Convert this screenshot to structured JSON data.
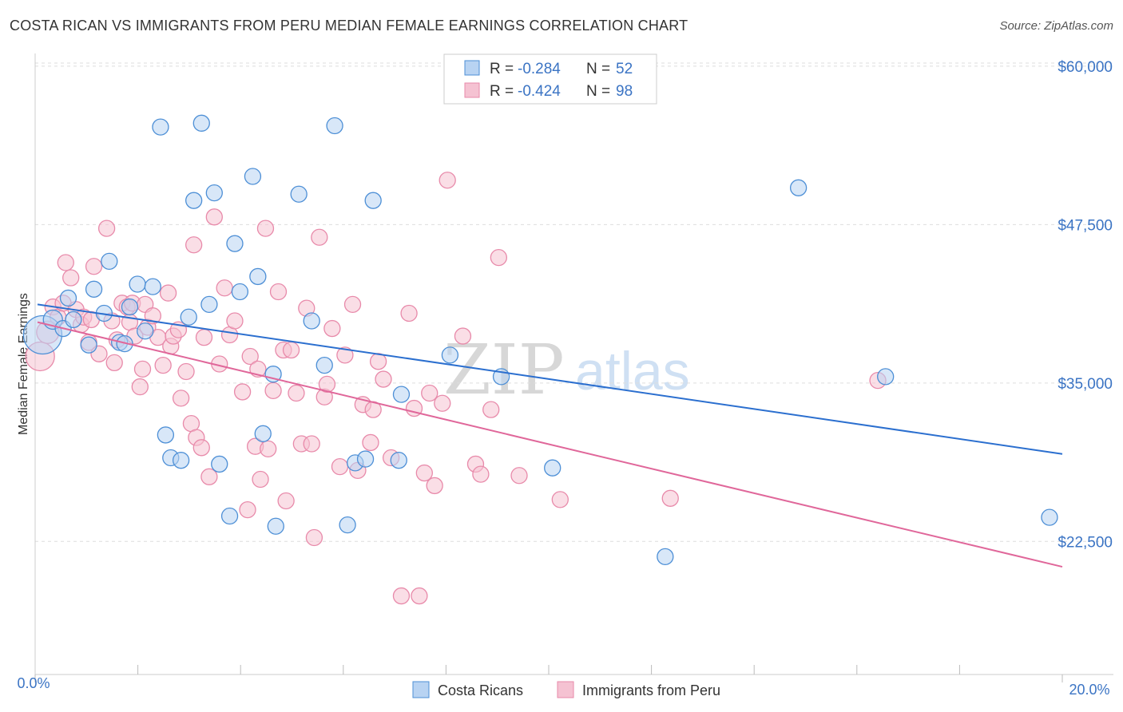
{
  "header": {
    "title": "COSTA RICAN VS IMMIGRANTS FROM PERU MEDIAN FEMALE EARNINGS CORRELATION CHART",
    "source": "Source: ZipAtlas.com"
  },
  "colors": {
    "blue": "#4d8fd6",
    "blue_fill": "#b8d3f2",
    "blue_line": "#2b6fcf",
    "pink": "#e88aaa",
    "pink_fill": "#f5c2d2",
    "pink_line": "#e0679a",
    "axis_label": "#3b74c4",
    "grid": "#dddddd"
  },
  "watermark": {
    "part1": "ZIP",
    "part2": "atlas"
  },
  "legend_top": {
    "rows": [
      {
        "r_label": "R =",
        "r_value": "-0.284",
        "n_label": "N =",
        "n_value": "52"
      },
      {
        "r_label": "R =",
        "r_value": "-0.424",
        "n_label": "N =",
        "n_value": "98"
      }
    ]
  },
  "legend_bottom": {
    "items": [
      "Costa Ricans",
      "Immigrants from Peru"
    ]
  },
  "chart_data": {
    "type": "scatter",
    "title": "COSTA RICAN VS IMMIGRANTS FROM PERU MEDIAN FEMALE EARNINGS CORRELATION CHART",
    "xlabel": "",
    "ylabel": "Median Female Earnings",
    "xlim": [
      0,
      20
    ],
    "ylim": [
      12000,
      61000
    ],
    "x_tick_labels": {
      "left": "0.0%",
      "right": "20.0%"
    },
    "y_ticks": [
      {
        "value": 60000,
        "label": "$60,000"
      },
      {
        "value": 47500,
        "label": "$47,500"
      },
      {
        "value": 35000,
        "label": "$35,000"
      },
      {
        "value": 22500,
        "label": "$22,500"
      }
    ],
    "grid": true,
    "series": [
      {
        "name": "Costa Ricans",
        "r": -0.284,
        "n": 52,
        "trend": {
          "x": [
            0.0,
            20.0
          ],
          "y": [
            41200,
            29400
          ]
        },
        "points": [
          [
            0.1,
            38800,
            24
          ],
          [
            0.3,
            40000,
            12
          ],
          [
            0.5,
            39300,
            10
          ],
          [
            0.6,
            41700,
            10
          ],
          [
            0.7,
            40000,
            10
          ],
          [
            1.0,
            38000,
            10
          ],
          [
            1.1,
            42400,
            10
          ],
          [
            1.3,
            40500,
            10
          ],
          [
            1.4,
            44600,
            10
          ],
          [
            1.6,
            38200,
            10
          ],
          [
            1.7,
            38100,
            10
          ],
          [
            1.8,
            41000,
            10
          ],
          [
            1.95,
            42800,
            10
          ],
          [
            2.1,
            39100,
            10
          ],
          [
            2.25,
            42600,
            10
          ],
          [
            2.4,
            55200,
            10
          ],
          [
            2.5,
            30900,
            10
          ],
          [
            2.6,
            29100,
            10
          ],
          [
            2.8,
            28900,
            10
          ],
          [
            2.95,
            40200,
            10
          ],
          [
            3.05,
            49400,
            10
          ],
          [
            3.2,
            55500,
            10
          ],
          [
            3.35,
            41200,
            10
          ],
          [
            3.45,
            50000,
            10
          ],
          [
            3.55,
            28600,
            10
          ],
          [
            3.75,
            24500,
            10
          ],
          [
            3.85,
            46000,
            10
          ],
          [
            3.95,
            42200,
            10
          ],
          [
            4.2,
            51300,
            10
          ],
          [
            4.3,
            43400,
            10
          ],
          [
            4.4,
            31000,
            10
          ],
          [
            4.6,
            35700,
            10
          ],
          [
            4.65,
            23700,
            10
          ],
          [
            5.1,
            49900,
            10
          ],
          [
            5.35,
            39900,
            10
          ],
          [
            5.6,
            36400,
            10
          ],
          [
            5.8,
            55300,
            10
          ],
          [
            6.05,
            23800,
            10
          ],
          [
            6.2,
            28700,
            10
          ],
          [
            6.4,
            29000,
            10
          ],
          [
            6.55,
            49400,
            10
          ],
          [
            7.05,
            28900,
            10
          ],
          [
            7.1,
            34100,
            10
          ],
          [
            8.05,
            37200,
            10
          ],
          [
            9.05,
            35500,
            10
          ],
          [
            10.05,
            28300,
            10
          ],
          [
            12.25,
            21300,
            10
          ],
          [
            14.85,
            50400,
            10
          ],
          [
            16.55,
            35500,
            10
          ],
          [
            19.75,
            24400,
            10
          ]
        ]
      },
      {
        "name": "Immigrants from Peru",
        "r": -0.424,
        "n": 98,
        "trend": {
          "x": [
            0.0,
            20.0
          ],
          "y": [
            39800,
            20500
          ]
        },
        "points": [
          [
            0.05,
            37100,
            18
          ],
          [
            0.2,
            39000,
            14
          ],
          [
            0.3,
            41000,
            10
          ],
          [
            0.4,
            40200,
            10
          ],
          [
            0.5,
            41300,
            10
          ],
          [
            0.55,
            44500,
            10
          ],
          [
            0.65,
            43300,
            10
          ],
          [
            0.75,
            40800,
            10
          ],
          [
            0.85,
            39600,
            10
          ],
          [
            0.9,
            40200,
            10
          ],
          [
            1.0,
            38200,
            10
          ],
          [
            1.05,
            40000,
            10
          ],
          [
            1.1,
            44200,
            10
          ],
          [
            1.2,
            37300,
            10
          ],
          [
            1.35,
            47200,
            10
          ],
          [
            1.45,
            39900,
            10
          ],
          [
            1.5,
            36600,
            10
          ],
          [
            1.55,
            38400,
            10
          ],
          [
            1.65,
            41300,
            10
          ],
          [
            1.75,
            41000,
            10
          ],
          [
            1.8,
            39800,
            10
          ],
          [
            1.85,
            41300,
            10
          ],
          [
            1.9,
            38700,
            10
          ],
          [
            2.0,
            34700,
            10
          ],
          [
            2.05,
            36100,
            10
          ],
          [
            2.1,
            41200,
            10
          ],
          [
            2.15,
            39400,
            10
          ],
          [
            2.25,
            40300,
            10
          ],
          [
            2.35,
            38600,
            10
          ],
          [
            2.45,
            36400,
            10
          ],
          [
            2.55,
            42100,
            10
          ],
          [
            2.6,
            37900,
            10
          ],
          [
            2.65,
            38700,
            10
          ],
          [
            2.75,
            39200,
            10
          ],
          [
            2.8,
            33800,
            10
          ],
          [
            2.9,
            35900,
            10
          ],
          [
            3.0,
            31800,
            10
          ],
          [
            3.05,
            45900,
            10
          ],
          [
            3.1,
            30700,
            10
          ],
          [
            3.2,
            29900,
            10
          ],
          [
            3.25,
            38600,
            10
          ],
          [
            3.35,
            27600,
            10
          ],
          [
            3.45,
            48100,
            10
          ],
          [
            3.55,
            36500,
            10
          ],
          [
            3.65,
            42500,
            10
          ],
          [
            3.75,
            38800,
            10
          ],
          [
            3.85,
            39900,
            10
          ],
          [
            4.0,
            34300,
            10
          ],
          [
            4.1,
            25000,
            10
          ],
          [
            4.15,
            37100,
            10
          ],
          [
            4.25,
            30000,
            10
          ],
          [
            4.3,
            36100,
            10
          ],
          [
            4.35,
            27400,
            10
          ],
          [
            4.45,
            47200,
            10
          ],
          [
            4.5,
            29800,
            10
          ],
          [
            4.6,
            34400,
            10
          ],
          [
            4.7,
            42200,
            10
          ],
          [
            4.8,
            37600,
            10
          ],
          [
            4.85,
            25700,
            10
          ],
          [
            4.95,
            37600,
            10
          ],
          [
            5.05,
            34200,
            10
          ],
          [
            5.15,
            30200,
            10
          ],
          [
            5.25,
            40900,
            10
          ],
          [
            5.35,
            30200,
            10
          ],
          [
            5.4,
            22800,
            10
          ],
          [
            5.5,
            46500,
            10
          ],
          [
            5.6,
            33900,
            10
          ],
          [
            5.65,
            34900,
            10
          ],
          [
            5.75,
            39300,
            10
          ],
          [
            5.9,
            28400,
            10
          ],
          [
            6.0,
            37200,
            10
          ],
          [
            6.15,
            41200,
            10
          ],
          [
            6.25,
            28100,
            10
          ],
          [
            6.35,
            33300,
            10
          ],
          [
            6.5,
            30300,
            10
          ],
          [
            6.55,
            32900,
            10
          ],
          [
            6.65,
            36700,
            10
          ],
          [
            6.75,
            35300,
            10
          ],
          [
            6.9,
            29100,
            10
          ],
          [
            7.1,
            18200,
            10
          ],
          [
            7.25,
            40500,
            10
          ],
          [
            7.35,
            33000,
            10
          ],
          [
            7.45,
            18200,
            10
          ],
          [
            7.55,
            27900,
            10
          ],
          [
            7.65,
            34200,
            10
          ],
          [
            7.75,
            26900,
            10
          ],
          [
            7.9,
            33400,
            10
          ],
          [
            8.0,
            51000,
            10
          ],
          [
            8.3,
            38700,
            10
          ],
          [
            8.55,
            28600,
            10
          ],
          [
            8.65,
            27800,
            10
          ],
          [
            8.85,
            32900,
            10
          ],
          [
            9.0,
            44900,
            10
          ],
          [
            9.4,
            27700,
            10
          ],
          [
            10.2,
            25800,
            10
          ],
          [
            12.35,
            25900,
            10
          ],
          [
            16.4,
            35200,
            10
          ]
        ]
      }
    ]
  }
}
